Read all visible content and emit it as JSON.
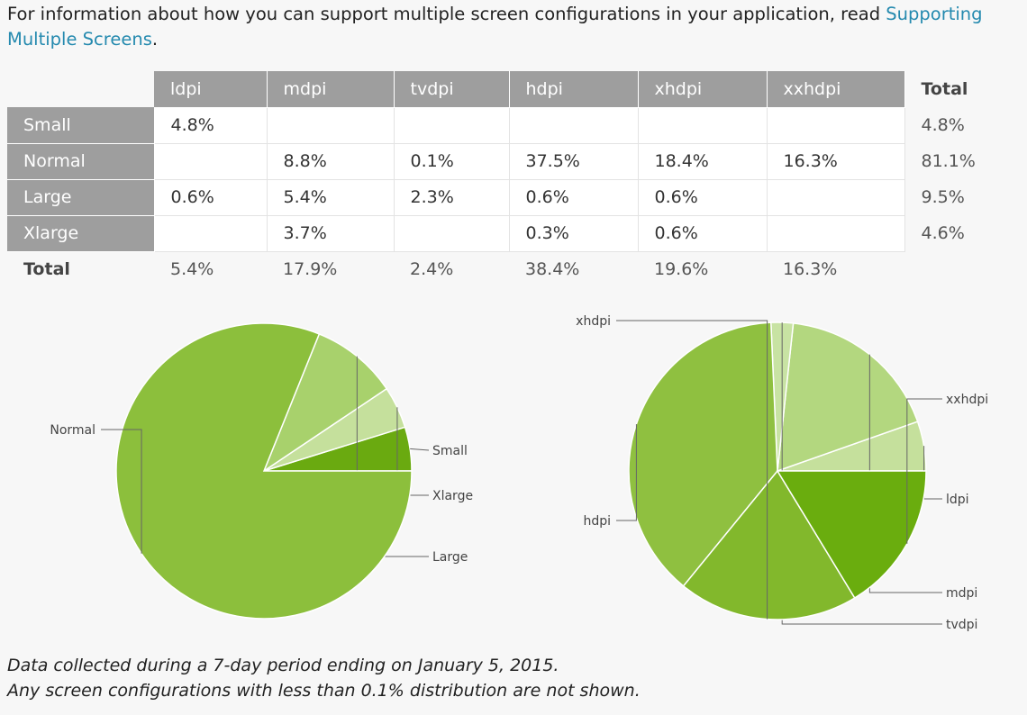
{
  "intro": {
    "text": "For information about how you can support multiple screen configurations in your application, read ",
    "link_text": "Supporting Multiple Screens",
    "end": "."
  },
  "table": {
    "columns": [
      "ldpi",
      "mdpi",
      "tvdpi",
      "hdpi",
      "xhdpi",
      "xxhdpi",
      "Total"
    ],
    "rows": [
      {
        "label": "Small",
        "cells": [
          "4.8%",
          "",
          "",
          "",
          "",
          "",
          "4.8%"
        ]
      },
      {
        "label": "Normal",
        "cells": [
          "",
          "8.8%",
          "0.1%",
          "37.5%",
          "18.4%",
          "16.3%",
          "81.1%"
        ]
      },
      {
        "label": "Large",
        "cells": [
          "0.6%",
          "5.4%",
          "2.3%",
          "0.6%",
          "0.6%",
          "",
          "9.5%"
        ]
      },
      {
        "label": "Xlarge",
        "cells": [
          "",
          "3.7%",
          "",
          "0.3%",
          "0.6%",
          "",
          "4.6%"
        ]
      }
    ],
    "total_row": {
      "label": "Total",
      "cells": [
        "5.4%",
        "17.9%",
        "2.4%",
        "38.4%",
        "19.6%",
        "16.3%"
      ]
    }
  },
  "chart_data": [
    {
      "type": "pie",
      "slices": [
        {
          "label": "Small",
          "value": 4.8,
          "color": "#6aaa10"
        },
        {
          "label": "Xlarge",
          "value": 4.6,
          "color": "#c5e09c"
        },
        {
          "label": "Large",
          "value": 9.5,
          "color": "#a8d16c"
        },
        {
          "label": "Normal",
          "value": 81.1,
          "color": "#8cbf3c"
        }
      ]
    },
    {
      "type": "pie",
      "slices": [
        {
          "label": "ldpi",
          "value": 5.4,
          "color": "#c5e09c"
        },
        {
          "label": "mdpi",
          "value": 17.9,
          "color": "#b3d77f"
        },
        {
          "label": "tvdpi",
          "value": 2.4,
          "color": "#c8e3a3"
        },
        {
          "label": "hdpi",
          "value": 38.4,
          "color": "#8fc040"
        },
        {
          "label": "xhdpi",
          "value": 19.6,
          "color": "#82b82c"
        },
        {
          "label": "xxhdpi",
          "value": 16.3,
          "color": "#6aad0e"
        }
      ]
    }
  ],
  "footnote": {
    "line1": "Data collected during a 7-day period ending on January 5, 2015.",
    "line2": "Any screen configurations with less than 0.1% distribution are not shown."
  }
}
